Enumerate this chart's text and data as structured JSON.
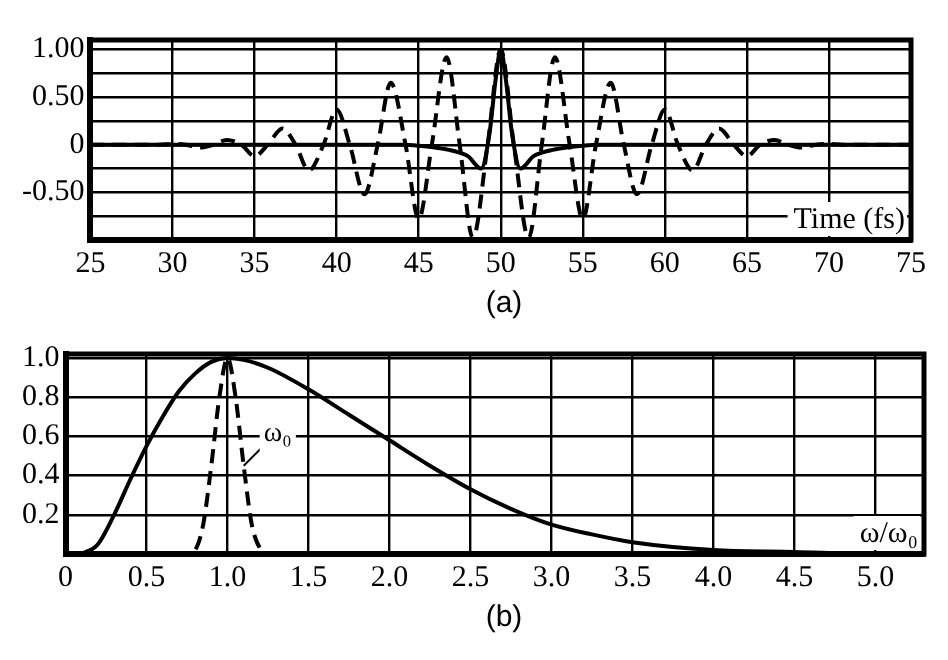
{
  "chart_data": [
    {
      "type": "line",
      "xlabel": "Time (fs)",
      "annotations": [
        "(a)"
      ],
      "xlim": [
        25,
        75
      ],
      "xticks": [
        25,
        30,
        35,
        40,
        45,
        50,
        55,
        60,
        65,
        70,
        75
      ],
      "ylim": [
        -1,
        1.1
      ],
      "yticks": [
        {
          "value": -1,
          "label": null
        },
        {
          "value": -0.75,
          "label": null
        },
        {
          "value": -0.5,
          "label": "-0.50"
        },
        {
          "value": -0.25,
          "label": null
        },
        0,
        {
          "value": 0.25,
          "label": null
        },
        {
          "value": 0.5,
          "label": "0.50"
        },
        {
          "value": 0.75,
          "label": null
        },
        {
          "value": 1,
          "label": "1.00"
        }
      ],
      "grid": true,
      "marker": "none",
      "series": [
        {
          "color": "#000000",
          "line_style": "solid",
          "x": [
            25,
            44,
            45,
            46,
            47,
            48,
            48.8,
            49.3,
            49.7,
            50,
            50.3,
            50.7,
            51.2,
            52,
            53,
            54,
            55,
            56,
            75
          ],
          "values": [
            0,
            0,
            -0.01,
            -0.03,
            -0.06,
            -0.12,
            -0.25,
            0.1,
            0.7,
            1,
            0.7,
            0.1,
            -0.25,
            -0.12,
            -0.06,
            -0.03,
            -0.01,
            0,
            0
          ]
        },
        {
          "color": "#000000",
          "line_style": "dashed",
          "x": [
            25,
            28,
            29.2,
            30,
            30.8,
            31.7,
            32.5,
            33.3,
            34.2,
            35,
            35.8,
            36.7,
            37.5,
            38.3,
            39.2,
            40,
            40.8,
            41.7,
            42.5,
            43.3,
            44.2,
            45,
            45.8,
            46.7,
            47.5,
            48.3,
            49.2,
            50,
            50.8,
            51.7,
            52.5,
            53.3,
            54.2,
            55,
            55.8,
            56.7,
            57.5,
            58.3,
            59.2,
            60,
            60.8,
            61.7,
            62.5,
            63.3,
            64.2,
            65,
            65.8,
            66.7,
            67.5,
            68.3,
            69.2,
            70,
            70.8,
            72,
            75
          ],
          "values": [
            0,
            0,
            0,
            0.01,
            0,
            -0.03,
            0,
            0.05,
            0,
            -0.12,
            0,
            0.17,
            0,
            -0.27,
            0,
            0.37,
            0,
            -0.52,
            0,
            0.65,
            0,
            -0.78,
            0,
            0.92,
            0,
            -0.98,
            0,
            1,
            0,
            -0.98,
            0,
            0.92,
            0,
            -0.78,
            0,
            0.65,
            0,
            -0.52,
            0,
            0.37,
            0,
            -0.27,
            0,
            0.17,
            0,
            -0.12,
            0,
            0.05,
            0,
            -0.03,
            0,
            0.01,
            0,
            0,
            0
          ]
        }
      ]
    },
    {
      "type": "line",
      "xlabel": "ω/ω₀",
      "annotations": [
        {
          "text": "ω₀",
          "x": 1.1,
          "y": 0.45
        },
        "(b)"
      ],
      "xlim": [
        0,
        5.3
      ],
      "xticks": [
        0,
        0.5,
        {
          "value": 1,
          "label": "1.0"
        },
        1.5,
        {
          "value": 2,
          "label": "2.0"
        },
        2.5,
        {
          "value": 3,
          "label": "3.0"
        },
        3.5,
        {
          "value": 4,
          "label": "4.0"
        },
        4.5,
        {
          "value": 5,
          "label": "5.0"
        }
      ],
      "ylim": [
        0,
        1.02
      ],
      "yticks": [
        {
          "value": 0,
          "label": null
        },
        0.2,
        0.4,
        0.6,
        0.8,
        {
          "value": 1,
          "label": "1.0"
        }
      ],
      "grid": true,
      "marker": "none",
      "series": [
        {
          "color": "#000000",
          "line_style": "solid",
          "x": [
            0.1,
            0.2,
            0.3,
            0.4,
            0.5,
            0.6,
            0.7,
            0.8,
            0.9,
            1,
            1.1,
            1.25,
            1.5,
            1.75,
            2,
            2.25,
            2.5,
            2.75,
            3,
            3.25,
            3.5,
            4,
            4.5,
            5,
            5.3
          ],
          "values": [
            0,
            0.05,
            0.2,
            0.38,
            0.55,
            0.7,
            0.83,
            0.92,
            0.98,
            1,
            0.99,
            0.95,
            0.84,
            0.71,
            0.58,
            0.45,
            0.33,
            0.23,
            0.15,
            0.1,
            0.06,
            0.02,
            0.01,
            0,
            0
          ]
        },
        {
          "color": "#000000",
          "line_style": "dashed",
          "x": [
            0,
            0.75,
            0.8,
            0.85,
            0.9,
            0.95,
            1,
            1.05,
            1.1,
            1.15,
            1.2,
            1.25,
            5.3
          ],
          "values": [
            0,
            0,
            0.02,
            0.15,
            0.45,
            0.8,
            1,
            0.8,
            0.45,
            0.15,
            0.03,
            0,
            0
          ]
        }
      ]
    }
  ]
}
